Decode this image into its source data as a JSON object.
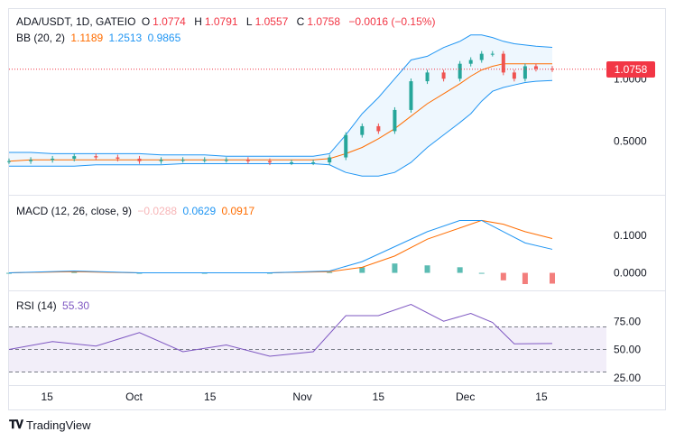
{
  "header": {
    "symbol": "ADA/USDT, 1D, GATEIO",
    "open_label": "O",
    "open": "1.0774",
    "high_label": "H",
    "high": "1.0791",
    "low_label": "L",
    "low": "1.0557",
    "close_label": "C",
    "close": "1.0758",
    "change": "−0.0016 (−0.15%)"
  },
  "bb_legend": {
    "label": "BB (20, 2)",
    "basis": "1.1189",
    "upper": "1.2513",
    "lower": "0.9865"
  },
  "macd_legend": {
    "label": "MACD (12, 26, close, 9)",
    "hist": "−0.0288",
    "macd": "0.0629",
    "signal": "0.0917"
  },
  "rsi_legend": {
    "label": "RSI (14)",
    "value": "55.30"
  },
  "price_tag": "1.0758",
  "price_axis": [
    "1.0000",
    "0.5000"
  ],
  "macd_axis": [
    "0.1000",
    "0.0000"
  ],
  "rsi_axis": [
    "75.00",
    "50.00",
    "25.00"
  ],
  "time_axis": [
    "15",
    "Oct",
    "15",
    "Nov",
    "15",
    "Dec",
    "15"
  ],
  "footer": {
    "brand": "TradingView"
  },
  "colors": {
    "up": "#26a69a",
    "down": "#ef5350",
    "bb": "#2196f3",
    "basis": "#ff6d00",
    "macd": "#2196f3",
    "signal": "#ff6d00",
    "rsi": "#7e57c2"
  },
  "chart_data": [
    {
      "type": "candlestick",
      "title": "ADA/USDT, 1D, GATEIO",
      "x": [
        "2024-09-08",
        "2024-09-12",
        "2024-09-16",
        "2024-09-20",
        "2024-09-24",
        "2024-09-28",
        "2024-10-02",
        "2024-10-06",
        "2024-10-10",
        "2024-10-14",
        "2024-10-18",
        "2024-10-22",
        "2024-10-26",
        "2024-10-30",
        "2024-11-03",
        "2024-11-06",
        "2024-11-09",
        "2024-11-12",
        "2024-11-15",
        "2024-11-18",
        "2024-11-21",
        "2024-11-24",
        "2024-11-27",
        "2024-11-30",
        "2024-12-02",
        "2024-12-04",
        "2024-12-06",
        "2024-12-08",
        "2024-12-10",
        "2024-12-12",
        "2024-12-14",
        "2024-12-17"
      ],
      "close": [
        0.34,
        0.35,
        0.36,
        0.38,
        0.37,
        0.36,
        0.34,
        0.35,
        0.35,
        0.35,
        0.35,
        0.34,
        0.33,
        0.33,
        0.33,
        0.37,
        0.55,
        0.62,
        0.58,
        0.75,
        0.98,
        1.05,
        1.0,
        1.12,
        1.15,
        1.2,
        1.2,
        1.05,
        1.0,
        1.1,
        1.08,
        1.0758
      ],
      "bb_upper": [
        0.41,
        0.41,
        0.4,
        0.4,
        0.4,
        0.4,
        0.4,
        0.39,
        0.39,
        0.39,
        0.38,
        0.38,
        0.38,
        0.38,
        0.38,
        0.4,
        0.55,
        0.72,
        0.85,
        1.0,
        1.15,
        1.18,
        1.25,
        1.3,
        1.35,
        1.35,
        1.33,
        1.3,
        1.28,
        1.27,
        1.26,
        1.2513
      ],
      "bb_basis": [
        0.34,
        0.35,
        0.35,
        0.35,
        0.35,
        0.35,
        0.35,
        0.35,
        0.35,
        0.35,
        0.35,
        0.35,
        0.35,
        0.35,
        0.35,
        0.36,
        0.4,
        0.45,
        0.52,
        0.6,
        0.7,
        0.8,
        0.88,
        0.96,
        1.02,
        1.07,
        1.1,
        1.12,
        1.12,
        1.12,
        1.12,
        1.1189
      ],
      "bb_lower": [
        0.3,
        0.3,
        0.3,
        0.3,
        0.31,
        0.31,
        0.31,
        0.31,
        0.32,
        0.32,
        0.32,
        0.32,
        0.32,
        0.32,
        0.32,
        0.31,
        0.25,
        0.22,
        0.22,
        0.25,
        0.33,
        0.45,
        0.55,
        0.65,
        0.72,
        0.82,
        0.9,
        0.93,
        0.95,
        0.97,
        0.98,
        0.9865
      ],
      "ylim": [
        0.15,
        1.45
      ]
    },
    {
      "type": "line",
      "title": "MACD (12, 26, close, 9)",
      "x": [
        "2024-09-08",
        "2024-09-20",
        "2024-10-02",
        "2024-10-14",
        "2024-10-26",
        "2024-11-06",
        "2024-11-12",
        "2024-11-18",
        "2024-11-24",
        "2024-11-30",
        "2024-12-04",
        "2024-12-08",
        "2024-12-12",
        "2024-12-17"
      ],
      "series": [
        {
          "name": "MACD",
          "values": [
            0.0,
            0.005,
            0.0,
            0.0,
            0.0,
            0.005,
            0.03,
            0.07,
            0.11,
            0.14,
            0.14,
            0.11,
            0.08,
            0.0629
          ]
        },
        {
          "name": "Signal",
          "values": [
            0.0,
            0.003,
            0.0,
            0.0,
            0.0,
            0.003,
            0.015,
            0.045,
            0.09,
            0.12,
            0.14,
            0.13,
            0.11,
            0.0917
          ]
        },
        {
          "name": "Histogram",
          "values": [
            0.0,
            0.002,
            0.0,
            0.0,
            0.0,
            0.002,
            0.015,
            0.025,
            0.02,
            0.015,
            0.0,
            -0.02,
            -0.03,
            -0.0288
          ]
        }
      ],
      "ylim": [
        -0.03,
        0.17
      ]
    },
    {
      "type": "line",
      "title": "RSI (14)",
      "x": [
        "2024-09-08",
        "2024-09-16",
        "2024-09-24",
        "2024-10-02",
        "2024-10-10",
        "2024-10-18",
        "2024-10-26",
        "2024-11-03",
        "2024-11-09",
        "2024-11-15",
        "2024-11-21",
        "2024-11-27",
        "2024-12-02",
        "2024-12-06",
        "2024-12-10",
        "2024-12-17"
      ],
      "series": [
        {
          "name": "RSI",
          "values": [
            50,
            57,
            53,
            65,
            48,
            54,
            44,
            48,
            80,
            80,
            90,
            75,
            82,
            74,
            55,
            55.3
          ]
        }
      ],
      "levels": [
        70,
        50,
        30
      ],
      "ylim": [
        30,
        95
      ]
    }
  ]
}
